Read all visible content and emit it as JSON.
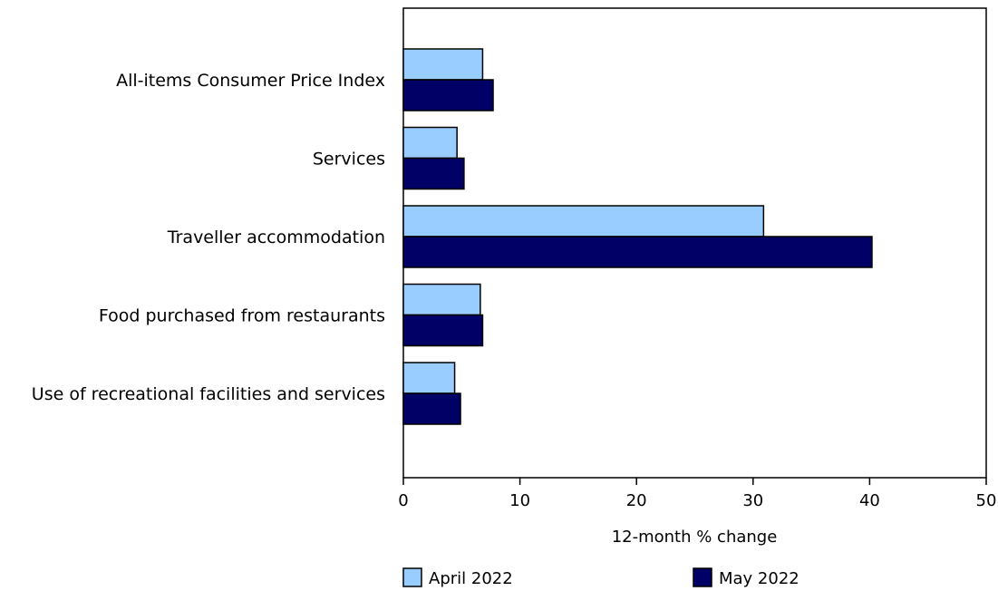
{
  "chart_data": {
    "type": "bar",
    "orientation": "horizontal",
    "categories": [
      "All-items Consumer Price Index",
      "Services",
      "Traveller accommodation",
      "Food purchased from restaurants",
      "Use of recreational facilities and services"
    ],
    "series": [
      {
        "name": "April 2022",
        "color": "#99ccff",
        "values": [
          6.8,
          4.6,
          30.9,
          6.6,
          4.4
        ]
      },
      {
        "name": "May 2022",
        "color": "#000066",
        "values": [
          7.7,
          5.2,
          40.2,
          6.8,
          4.9
        ]
      }
    ],
    "xlabel": "12-month % change",
    "xlim": [
      0,
      50
    ],
    "xticks": [
      0,
      10,
      20,
      30,
      40,
      50
    ],
    "grid": false,
    "legend": "bottom"
  }
}
